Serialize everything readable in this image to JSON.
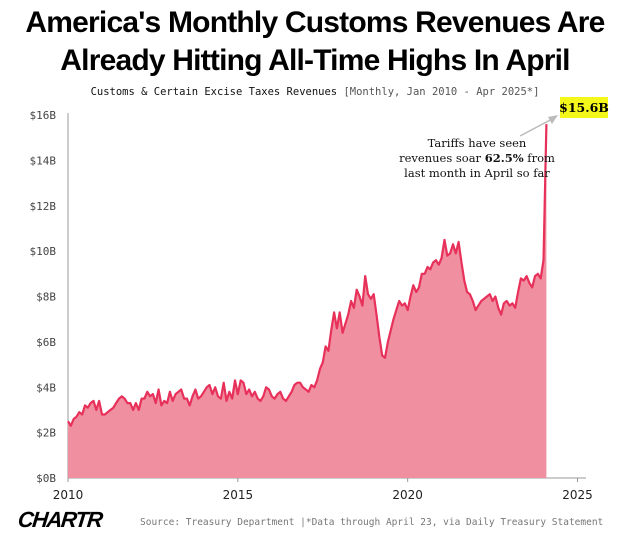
{
  "title_line1": "America's Monthly Customs Revenues Are",
  "title_line2": "Already Hitting All-Time Highs In April",
  "subtitle_main": "Customs & Certain Excise Taxes Revenues",
  "subtitle_detail": "[Monthly, Jan 2010 - Apr 2025*]",
  "annotation": {
    "line1": "Tariffs have seen",
    "line2_pre": "revenues soar ",
    "line2_bold": "62.5%",
    "line2_post": " from",
    "line3": "last month in April so far"
  },
  "callout_label": "$15.6B",
  "logo_text": "CHARTR",
  "source_text": "Source: Treasury Department |*Data through April 23, via Daily Treasury Statement",
  "colors": {
    "line": "#e8315a",
    "fill": "#ef8fa0",
    "callout_bg": "#f3f71a",
    "axis": "#999999"
  },
  "chart_data": {
    "type": "area",
    "title": "America's Monthly Customs Revenues Are Already Hitting All-Time Highs In April",
    "subtitle": "Customs & Certain Excise Taxes Revenues [Monthly, Jan 2010 - Apr 2025*]",
    "xlabel": "",
    "ylabel": "",
    "x_range": [
      2010.0,
      2025.25
    ],
    "ylim": [
      0,
      16
    ],
    "y_ticks": [
      "$0B",
      "$2B",
      "$4B",
      "$6B",
      "$8B",
      "$10B",
      "$12B",
      "$14B",
      "$16B"
    ],
    "x_ticks": [
      "2010",
      "2015",
      "2020",
      "2025"
    ],
    "grid": false,
    "series": [
      {
        "start": "2010-01",
        "frequency": "monthly",
        "values": [
          2.5,
          2.3,
          2.6,
          2.7,
          2.9,
          2.8,
          3.2,
          3.1,
          3.3,
          3.4,
          3.0,
          3.4,
          2.8,
          2.8,
          2.9,
          3.0,
          3.1,
          3.3,
          3.5,
          3.6,
          3.5,
          3.3,
          3.3,
          3.0,
          3.3,
          3.0,
          3.5,
          3.5,
          3.8,
          3.6,
          3.7,
          3.3,
          3.9,
          3.2,
          3.4,
          3.3,
          3.8,
          3.4,
          3.7,
          3.8,
          3.9,
          3.5,
          3.5,
          3.2,
          3.6,
          3.9,
          3.5,
          3.6,
          3.8,
          4.0,
          4.1,
          3.7,
          4.0,
          3.6,
          3.5,
          4.2,
          3.4,
          3.8,
          3.5,
          4.3,
          3.7,
          4.3,
          4.2,
          3.7,
          3.9,
          3.6,
          3.8,
          3.5,
          3.4,
          3.6,
          4.0,
          3.9,
          3.6,
          3.5,
          3.7,
          3.8,
          3.5,
          3.4,
          3.6,
          3.8,
          4.1,
          4.2,
          4.2,
          4.0,
          3.9,
          3.8,
          4.1,
          4.0,
          4.3,
          4.8,
          5.1,
          5.8,
          5.6,
          6.5,
          7.3,
          6.6,
          7.3,
          6.4,
          6.8,
          7.2,
          7.8,
          7.5,
          8.3,
          8.0,
          7.6,
          8.9,
          8.1,
          7.9,
          8.1,
          7.2,
          6.2,
          5.4,
          5.3,
          6.0,
          6.5,
          7.0,
          7.4,
          7.8,
          7.6,
          7.7,
          7.4,
          8.0,
          8.5,
          8.2,
          8.4,
          9.0,
          9.0,
          9.3,
          9.2,
          9.5,
          9.6,
          9.4,
          9.7,
          10.5,
          9.8,
          9.9,
          10.3,
          9.9,
          10.4,
          9.5,
          8.7,
          8.2,
          8.1,
          7.8,
          7.4,
          7.6,
          7.8,
          7.9,
          8.0,
          8.1,
          7.8,
          8.0,
          7.5,
          7.2,
          7.7,
          7.8,
          7.6,
          7.7,
          7.5,
          8.2,
          8.8,
          8.7,
          8.9,
          8.6,
          8.4,
          8.9,
          9.0,
          8.8,
          9.6,
          15.6
        ]
      }
    ],
    "annotations": [
      "Tariffs have seen revenues soar 62.5% from last month in April so far",
      "$15.6B"
    ]
  }
}
